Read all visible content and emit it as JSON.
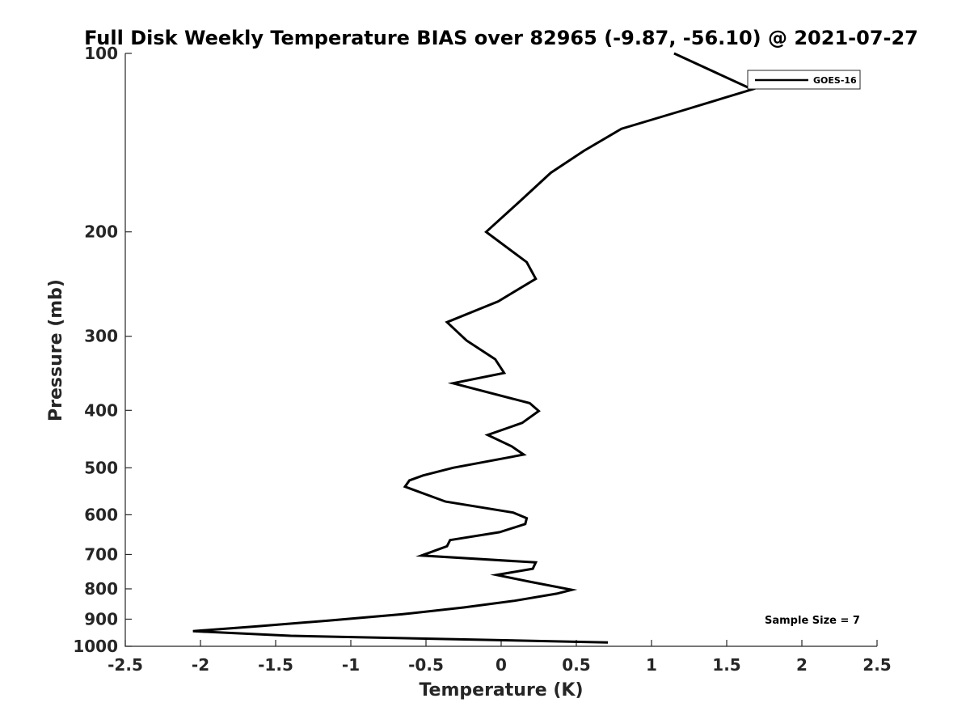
{
  "chart_data": {
    "type": "line",
    "title": "Full Disk Weekly Temperature BIAS over 82965 (-9.87, -56.10) @ 2021-07-27",
    "xlabel": "Temperature (K)",
    "ylabel": "Pressure (mb)",
    "xlim": [
      -2.5,
      2.5
    ],
    "ylim": [
      1000,
      100
    ],
    "y_scale": "log",
    "y_reversed": true,
    "grid": false,
    "legend_position": "top-right",
    "x_ticks": [
      -2.5,
      -2,
      -1.5,
      -1,
      -0.5,
      0,
      0.5,
      1,
      1.5,
      2,
      2.5
    ],
    "x_tick_labels": [
      "-2.5",
      "-2",
      "-1.5",
      "-1",
      "-0.5",
      "0",
      "0.5",
      "1",
      "1.5",
      "2",
      "2.5"
    ],
    "y_ticks": [
      100,
      200,
      300,
      400,
      500,
      600,
      700,
      800,
      900,
      1000
    ],
    "y_tick_labels": [
      "100",
      "200",
      "300",
      "400",
      "500",
      "600",
      "700",
      "800",
      "900",
      "1000"
    ],
    "annotation": "Sample Size = 7",
    "line_color": "#000000",
    "series": [
      {
        "name": "GOES-16",
        "points": [
          {
            "x": 1.15,
            "y": 100
          },
          {
            "x": 1.67,
            "y": 115
          },
          {
            "x": 1.2,
            "y": 125
          },
          {
            "x": 0.8,
            "y": 134
          },
          {
            "x": 0.55,
            "y": 146
          },
          {
            "x": 0.33,
            "y": 159
          },
          {
            "x": 0.12,
            "y": 178
          },
          {
            "x": -0.1,
            "y": 200
          },
          {
            "x": 0.17,
            "y": 225
          },
          {
            "x": 0.23,
            "y": 240
          },
          {
            "x": -0.02,
            "y": 262
          },
          {
            "x": -0.36,
            "y": 284
          },
          {
            "x": -0.23,
            "y": 305
          },
          {
            "x": -0.04,
            "y": 328
          },
          {
            "x": 0.02,
            "y": 346
          },
          {
            "x": -0.32,
            "y": 360
          },
          {
            "x": 0.19,
            "y": 389
          },
          {
            "x": 0.25,
            "y": 401
          },
          {
            "x": 0.14,
            "y": 420
          },
          {
            "x": -0.09,
            "y": 440
          },
          {
            "x": 0.07,
            "y": 460
          },
          {
            "x": 0.15,
            "y": 475
          },
          {
            "x": -0.32,
            "y": 500
          },
          {
            "x": -0.52,
            "y": 515
          },
          {
            "x": -0.61,
            "y": 525
          },
          {
            "x": -0.64,
            "y": 538
          },
          {
            "x": -0.37,
            "y": 570
          },
          {
            "x": 0.08,
            "y": 595
          },
          {
            "x": 0.17,
            "y": 608
          },
          {
            "x": 0.16,
            "y": 622
          },
          {
            "x": -0.01,
            "y": 642
          },
          {
            "x": -0.34,
            "y": 662
          },
          {
            "x": -0.36,
            "y": 678
          },
          {
            "x": -0.53,
            "y": 703
          },
          {
            "x": 0.23,
            "y": 722
          },
          {
            "x": 0.21,
            "y": 740
          },
          {
            "x": -0.03,
            "y": 758
          },
          {
            "x": 0.19,
            "y": 778
          },
          {
            "x": 0.47,
            "y": 803
          },
          {
            "x": 0.37,
            "y": 815
          },
          {
            "x": 0.09,
            "y": 838
          },
          {
            "x": -0.25,
            "y": 860
          },
          {
            "x": -0.66,
            "y": 883
          },
          {
            "x": -1.15,
            "y": 905
          },
          {
            "x": -1.62,
            "y": 925
          },
          {
            "x": -2.05,
            "y": 943
          },
          {
            "x": -1.4,
            "y": 960
          },
          {
            "x": 0.71,
            "y": 985
          }
        ]
      }
    ]
  }
}
